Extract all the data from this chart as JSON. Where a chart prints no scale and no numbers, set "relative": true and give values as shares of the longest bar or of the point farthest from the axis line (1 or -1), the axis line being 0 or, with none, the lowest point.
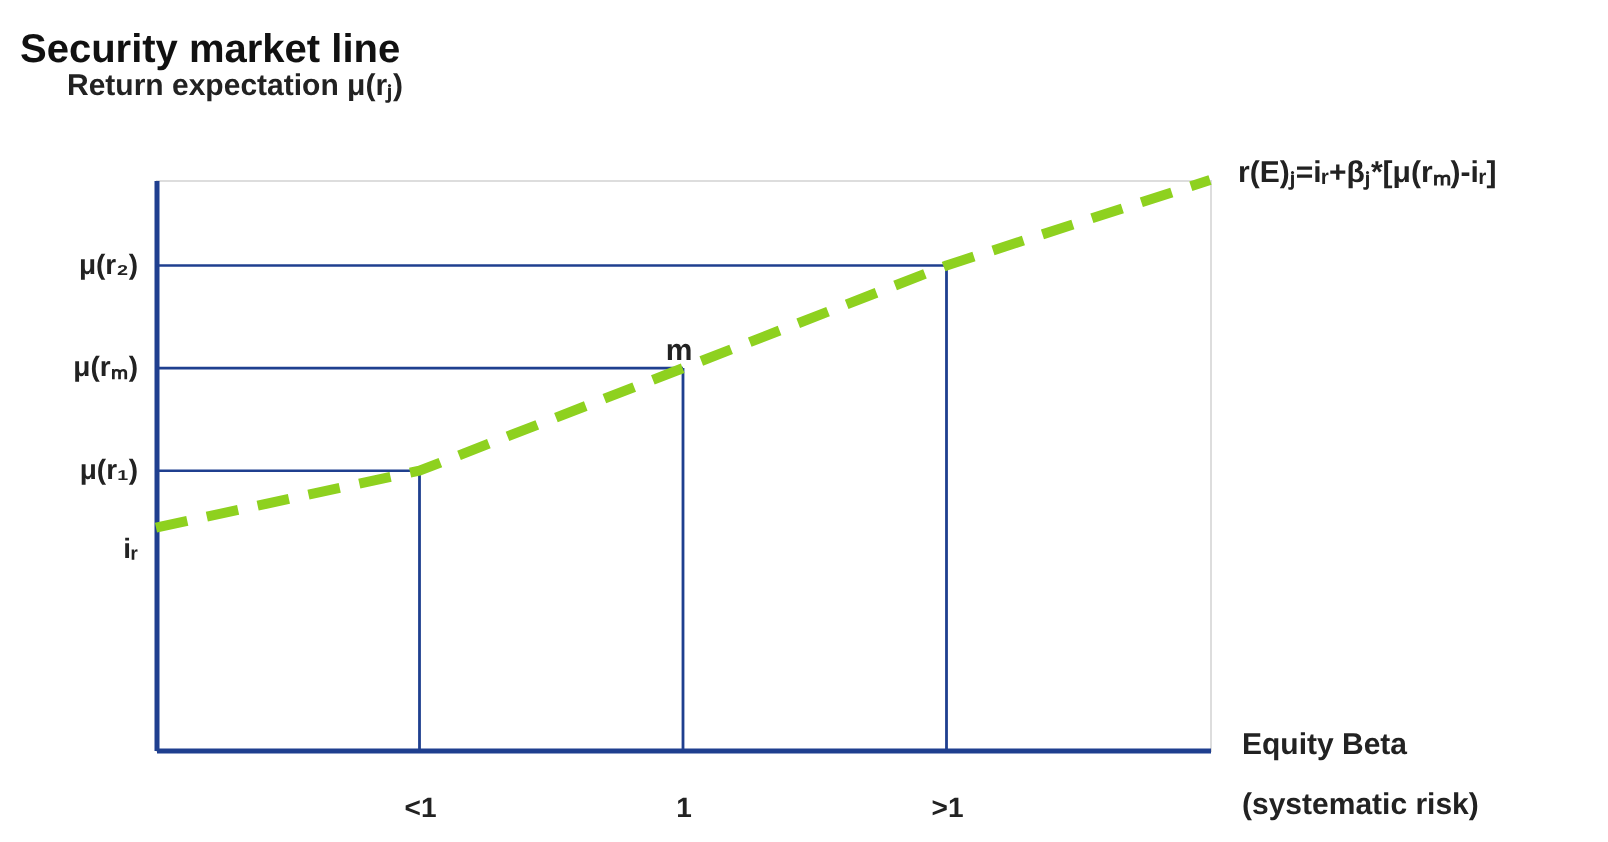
{
  "chart_data": {
    "type": "line",
    "title": "Security market line",
    "ylabel": "Return expectation μ(rⱼ)",
    "xlabel": "Equity Beta\n(systematic risk)",
    "relative": true,
    "categories": [
      null,
      "<1",
      "1",
      ">1",
      null
    ],
    "grid": false,
    "series": [
      {
        "type": "line",
        "name": "μ(r₁)",
        "color": "#1f3f8f",
        "line_style": "solid",
        "values": [
          0.49,
          0.49,
          null,
          null,
          null
        ]
      },
      {
        "type": "line",
        "name": "μ(rₘ)",
        "color": "#1f3f8f",
        "line_style": "solid",
        "values": [
          0.67,
          0.67,
          0.67,
          null,
          null
        ]
      },
      {
        "type": "line",
        "name": "μ(r₂)",
        "color": "#1f3f8f",
        "line_style": "solid",
        "values": [
          0.85,
          0.85,
          0.85,
          0.85,
          null
        ]
      },
      {
        "type": "bar",
        "color": "#1f3f8f",
        "values": [
          null,
          0.49,
          0.67,
          0.85,
          null
        ]
      },
      {
        "name": "r(E)ⱼ=iᵣ+βⱼ*[μ(rₘ)-iᵣ]",
        "color": "#8ed11f",
        "line_style": "dashed",
        "values": [
          0.39,
          0.49,
          0.67,
          0.85,
          1.0
        ]
      }
    ],
    "annotations": [
      {
        "text": "m",
        "x": "1",
        "y": 0.67
      },
      "iᵣ"
    ]
  }
}
